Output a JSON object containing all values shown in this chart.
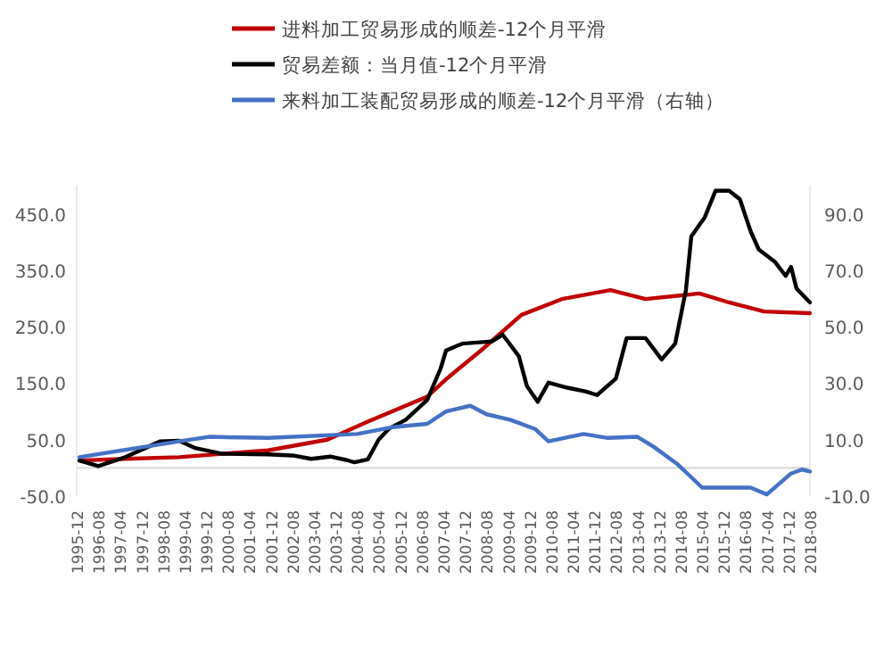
{
  "chart_data": {
    "type": "line",
    "legend": "top",
    "xlim": [
      "1995-12",
      "2018-08"
    ],
    "xticks": [
      "1995-12",
      "1996-08",
      "1997-04",
      "1997-12",
      "1998-08",
      "1999-04",
      "1999-12",
      "2000-08",
      "2001-04",
      "2001-12",
      "2002-08",
      "2003-04",
      "2003-12",
      "2004-08",
      "2005-04",
      "2005-12",
      "2006-08",
      "2007-04",
      "2007-12",
      "2008-08",
      "2009-04",
      "2009-12",
      "2010-08",
      "2011-04",
      "2011-12",
      "2012-08",
      "2013-04",
      "2013-12",
      "2014-08",
      "2015-04",
      "2015-12",
      "2016-08",
      "2017-04",
      "2017-12",
      "2018-08"
    ],
    "ylim": [
      -50,
      500
    ],
    "yticks": [
      {
        "value": -50,
        "label": "-50.0"
      },
      {
        "value": 50,
        "label": "50.0"
      },
      {
        "value": 150,
        "label": "150.0"
      },
      {
        "value": 250,
        "label": "250.0"
      },
      {
        "value": 350,
        "label": "350.0"
      },
      {
        "value": 450,
        "label": "450.0"
      }
    ],
    "y2lim": [
      -10,
      100
    ],
    "y2ticks": [
      {
        "value": -10,
        "label": "-10.0"
      },
      {
        "value": 10,
        "label": "10.0"
      },
      {
        "value": 30,
        "label": "30.0"
      },
      {
        "value": 50,
        "label": "50.0"
      },
      {
        "value": 70,
        "label": "70.0"
      },
      {
        "value": 90,
        "label": "90.0"
      }
    ],
    "ref_lines": [
      {
        "axis": "y",
        "value": 0,
        "color": "#d9d9d9"
      }
    ],
    "series": [
      {
        "name": "进料加工贸易形成的顺差-12个月平滑",
        "color": "#c00000",
        "x": [
          "1996-01",
          "1997-06",
          "1999-02",
          "2001-11",
          "2003-09",
          "2004-12",
          "2006-02",
          "2006-10",
          "2007-05",
          "2008-06",
          "2009-09",
          "2010-12",
          "2012-06",
          "2013-07",
          "2015-03",
          "2016-02",
          "2017-03",
          "2018-08"
        ],
        "values": [
          13,
          16,
          19,
          31,
          50,
          82,
          110,
          126,
          157,
          208,
          271,
          299,
          315,
          299,
          309,
          293,
          277,
          274
        ]
      },
      {
        "name": "贸易差额：当月值-12个月平滑",
        "color": "#000000",
        "x": [
          "1996-01",
          "1996-08",
          "1997-06",
          "1998-07",
          "1999-02",
          "1999-08",
          "2000-06",
          "2001-11",
          "2002-08",
          "2003-03",
          "2003-10",
          "2004-04",
          "2004-07",
          "2004-12",
          "2005-04",
          "2005-08",
          "2006-02",
          "2006-10",
          "2007-03",
          "2007-05",
          "2007-11",
          "2008-10",
          "2009-02",
          "2009-08",
          "2009-11",
          "2010-03",
          "2010-07",
          "2011-02",
          "2011-09",
          "2012-01",
          "2012-08",
          "2012-12",
          "2013-07",
          "2014-01",
          "2014-06",
          "2014-10",
          "2014-12",
          "2015-05",
          "2015-09",
          "2016-02",
          "2016-06",
          "2016-10",
          "2017-01",
          "2017-07",
          "2017-11",
          "2018-01",
          "2018-03",
          "2018-08"
        ],
        "values": [
          13,
          3,
          19,
          47,
          48,
          35,
          25,
          24,
          22,
          16,
          20,
          14,
          10,
          15,
          50,
          70,
          85,
          120,
          176,
          208,
          220,
          224,
          236,
          198,
          145,
          117,
          151,
          142,
          135,
          129,
          158,
          230,
          230,
          192,
          220,
          315,
          410,
          444,
          491,
          491,
          476,
          419,
          387,
          365,
          340,
          356,
          318,
          293
        ]
      },
      {
        "name": "来料加工装配贸易形成的顺差-12个月平滑（右轴）",
        "color": "#4472c4",
        "axis": "y2",
        "x": [
          "1996-01",
          "1999-02",
          "2000-01",
          "2001-11",
          "2004-08",
          "2005-09",
          "2006-10",
          "2007-05",
          "2008-02",
          "2008-08",
          "2009-05",
          "2010-02",
          "2010-07",
          "2011-08",
          "2012-05",
          "2013-04",
          "2013-10",
          "2014-07",
          "2015-04",
          "2016-01",
          "2016-10",
          "2017-04",
          "2018-01",
          "2018-05",
          "2018-08"
        ],
        "values": [
          3.8,
          9.4,
          11,
          10.6,
          12,
          14.4,
          15.6,
          20,
          22,
          19,
          17,
          13.8,
          9.4,
          12,
          10.6,
          11,
          7.5,
          1.2,
          -7,
          -7,
          -7,
          -9.4,
          -2,
          -0.6,
          -1.3
        ]
      }
    ]
  }
}
